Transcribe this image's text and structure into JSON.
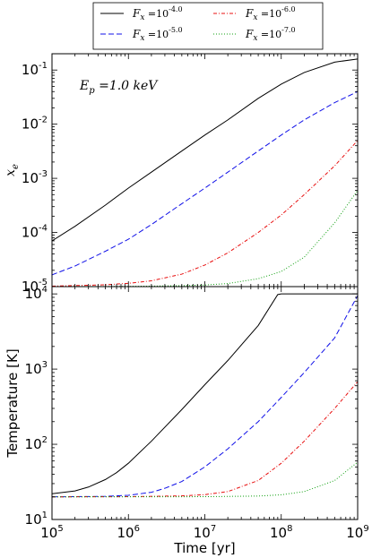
{
  "chart_data": [
    {
      "type": "line",
      "panel": "top",
      "xlabel": "",
      "ylabel": "x_e",
      "ylabel_main": "x",
      "ylabel_sub": "e",
      "xscale": "log",
      "yscale": "log",
      "xlim": [
        100000,
        1000000000
      ],
      "ylim": [
        1e-05,
        0.2
      ],
      "xticks": [
        100000,
        1000000,
        10000000,
        100000000,
        1000000000
      ],
      "yticks": [
        1e-05,
        0.0001,
        0.001,
        0.01,
        0.1
      ],
      "ytick_labels": [
        {
          "base": "10",
          "exp": "-5"
        },
        {
          "base": "10",
          "exp": "-4"
        },
        {
          "base": "10",
          "exp": "-3"
        },
        {
          "base": "10",
          "exp": "-2"
        },
        {
          "base": "10",
          "exp": "-1"
        }
      ],
      "annotation": "E_p =1.0 keV",
      "annotation_parts": {
        "sym": "E",
        "sub": "p",
        "rest": " =1.0 keV"
      },
      "grid": false,
      "series": [
        {
          "legend_index": 0,
          "color": "#000000",
          "dash": "solid",
          "x": [
            100000,
            200000,
            500000,
            1000000,
            2000000,
            5000000,
            10000000,
            20000000,
            50000000,
            100000000,
            200000000,
            500000000,
            1000000000
          ],
          "y": [
            7e-05,
            0.00013,
            0.00032,
            0.00066,
            0.0013,
            0.0032,
            0.0063,
            0.012,
            0.03,
            0.055,
            0.09,
            0.14,
            0.16
          ]
        },
        {
          "legend_index": 1,
          "color": "#1010e8",
          "dash": "dashed",
          "x": [
            100000,
            200000,
            500000,
            1000000,
            2000000,
            5000000,
            10000000,
            20000000,
            50000000,
            100000000,
            200000000,
            500000000,
            1000000000
          ],
          "y": [
            1.65e-05,
            2.4e-05,
            4.5e-05,
            7.5e-05,
            0.00014,
            0.00034,
            0.00066,
            0.0013,
            0.0032,
            0.0063,
            0.012,
            0.025,
            0.04
          ]
        },
        {
          "legend_index": 2,
          "color": "#e81010",
          "dash": "dashdot",
          "x": [
            100000,
            500000,
            1000000,
            2000000,
            5000000,
            10000000,
            20000000,
            50000000,
            100000000,
            200000000,
            500000000,
            1000000000
          ],
          "y": [
            1.02e-05,
            1.08e-05,
            1.15e-05,
            1.28e-05,
            1.7e-05,
            2.5e-05,
            4.2e-05,
            0.0001,
            0.00021,
            0.0005,
            0.0017,
            0.005
          ]
        },
        {
          "legend_index": 3,
          "color": "#10a010",
          "dash": "dotted",
          "x": [
            100000,
            1000000,
            5000000,
            10000000,
            20000000,
            50000000,
            100000000,
            200000000,
            500000000,
            1000000000
          ],
          "y": [
            1e-05,
            1.01e-05,
            1.04e-05,
            1.07e-05,
            1.14e-05,
            1.4e-05,
            1.9e-05,
            3.5e-05,
            0.00015,
            0.0006
          ]
        }
      ]
    },
    {
      "type": "line",
      "panel": "bottom",
      "xlabel": "Time [yr]",
      "ylabel": "Temperature [K]",
      "xscale": "log",
      "yscale": "log",
      "xlim": [
        100000,
        1000000000
      ],
      "ylim": [
        10,
        12500
      ],
      "xticks": [
        100000,
        1000000,
        10000000,
        100000000,
        1000000000
      ],
      "xtick_labels": [
        {
          "base": "10",
          "exp": "5"
        },
        {
          "base": "10",
          "exp": "6"
        },
        {
          "base": "10",
          "exp": "7"
        },
        {
          "base": "10",
          "exp": "8"
        },
        {
          "base": "10",
          "exp": "9"
        }
      ],
      "yticks": [
        10,
        100,
        1000,
        10000
      ],
      "ytick_labels": [
        {
          "base": "10",
          "exp": "1"
        },
        {
          "base": "10",
          "exp": "2"
        },
        {
          "base": "10",
          "exp": "3"
        },
        {
          "base": "10",
          "exp": "4"
        }
      ],
      "grid": false,
      "series": [
        {
          "legend_index": 0,
          "color": "#000000",
          "dash": "solid",
          "x": [
            100000,
            200000,
            300000,
            500000,
            700000,
            1000000,
            2000000,
            5000000,
            10000000,
            20000000,
            50000000,
            90000000,
            100000000,
            1000000000
          ],
          "y": [
            22,
            24,
            27,
            34,
            42,
            56,
            110,
            290,
            620,
            1300,
            3800,
            9800,
            10000,
            10000
          ]
        },
        {
          "legend_index": 1,
          "color": "#1010e8",
          "dash": "dashed",
          "x": [
            100000,
            500000,
            1000000,
            2000000,
            3000000,
            5000000,
            10000000,
            20000000,
            50000000,
            100000000,
            200000000,
            500000000,
            1000000000
          ],
          "y": [
            20,
            20.3,
            21,
            23,
            26,
            32,
            50,
            87,
            200,
            420,
            900,
            2600,
            9500
          ]
        },
        {
          "legend_index": 2,
          "color": "#e81010",
          "dash": "dashdot",
          "x": [
            100000,
            1000000,
            5000000,
            10000000,
            20000000,
            50000000,
            100000000,
            200000000,
            500000000,
            1000000000
          ],
          "y": [
            20,
            20.1,
            20.6,
            21.4,
            23.5,
            33,
            56,
            110,
            300,
            680
          ]
        },
        {
          "legend_index": 3,
          "color": "#10a010",
          "dash": "dotted",
          "x": [
            100000,
            10000000,
            50000000,
            100000000,
            200000000,
            500000000,
            1000000000
          ],
          "y": [
            20,
            20.1,
            20.5,
            21.3,
            23.5,
            33,
            58
          ]
        }
      ]
    }
  ],
  "legend": {
    "placement": "top",
    "entries": [
      {
        "sym": "F",
        "sub": "x",
        "eq": " =10",
        "exp": "-4.0",
        "color": "#000000",
        "dash": "solid"
      },
      {
        "sym": "F",
        "sub": "x",
        "eq": " =10",
        "exp": "-5.0",
        "color": "#1010e8",
        "dash": "dashed"
      },
      {
        "sym": "F",
        "sub": "x",
        "eq": " =10",
        "exp": "-6.0",
        "color": "#e81010",
        "dash": "dashdot"
      },
      {
        "sym": "F",
        "sub": "x",
        "eq": " =10",
        "exp": "-7.0",
        "color": "#10a010",
        "dash": "dotted"
      }
    ]
  }
}
